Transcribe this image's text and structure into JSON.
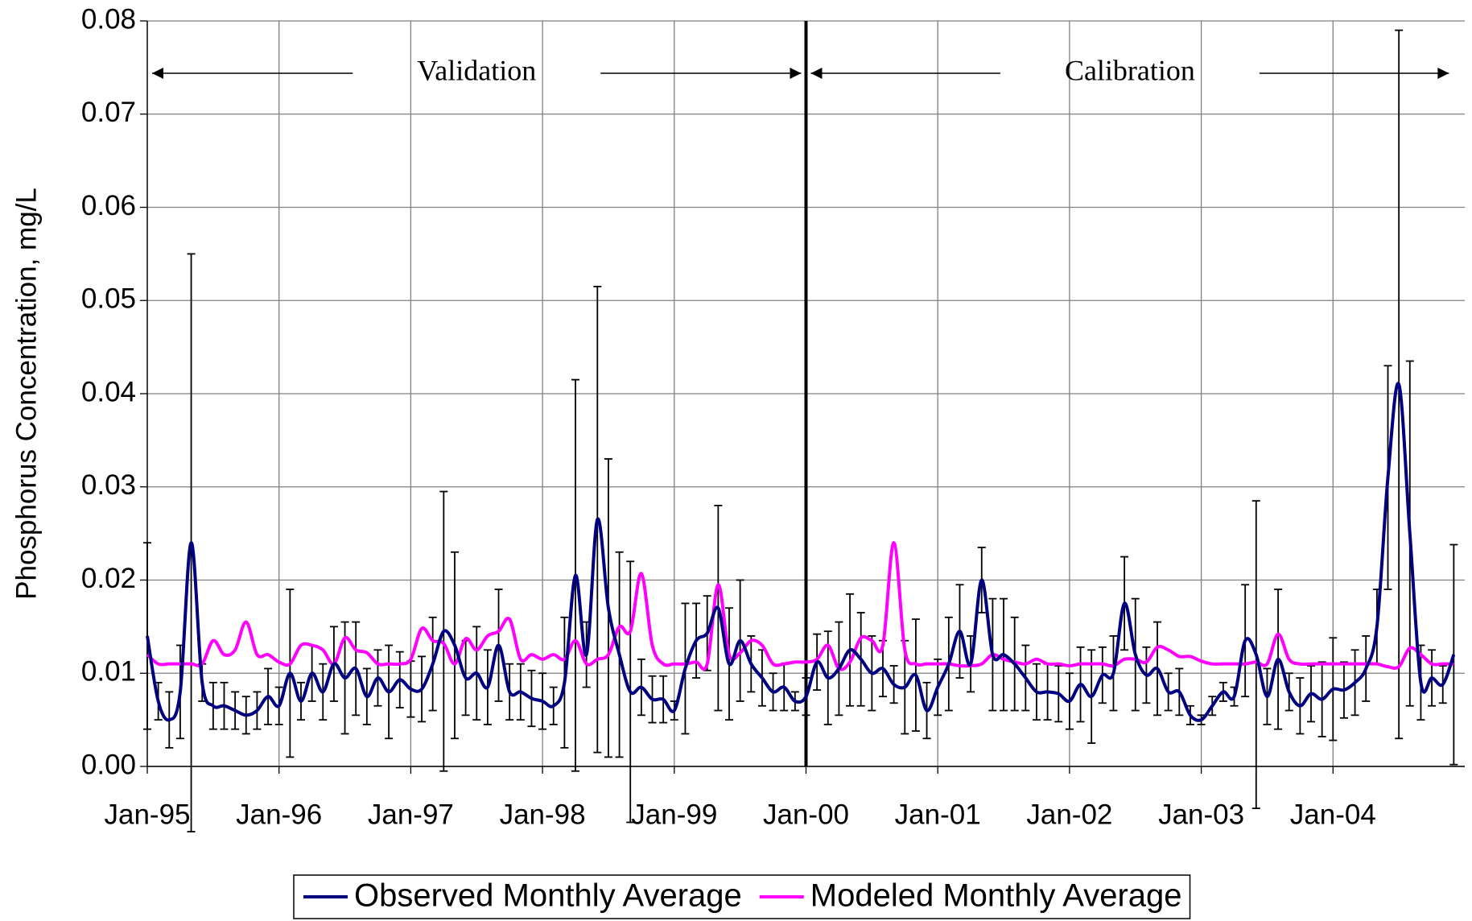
{
  "chart_data": {
    "type": "line",
    "y_label": "Phosphorus Concentration, mg/L",
    "categories": [
      "Jan-95",
      null,
      null,
      null,
      null,
      null,
      null,
      null,
      null,
      null,
      null,
      null,
      "Jan-96",
      null,
      null,
      null,
      null,
      null,
      null,
      null,
      null,
      null,
      null,
      null,
      "Jan-97",
      null,
      null,
      null,
      null,
      null,
      null,
      null,
      null,
      null,
      null,
      null,
      "Jan-98",
      null,
      null,
      null,
      null,
      null,
      null,
      null,
      null,
      null,
      null,
      null,
      "Jan-99",
      null,
      null,
      null,
      null,
      null,
      null,
      null,
      null,
      null,
      null,
      null,
      "Jan-00",
      null,
      null,
      null,
      null,
      null,
      null,
      null,
      null,
      null,
      null,
      null,
      "Jan-01",
      null,
      null,
      null,
      null,
      null,
      null,
      null,
      null,
      null,
      null,
      null,
      "Jan-02",
      null,
      null,
      null,
      null,
      null,
      null,
      null,
      null,
      null,
      null,
      null,
      "Jan-03",
      null,
      null,
      null,
      null,
      null,
      null,
      null,
      null,
      null,
      null,
      null,
      "Jan-04",
      null,
      null,
      null,
      null,
      null,
      null,
      null,
      null,
      null,
      null,
      null
    ],
    "series": [
      {
        "name": "Observed Monthly Average",
        "color": "#000080",
        "values": [
          0.014,
          0.007,
          0.005,
          0.008,
          0.024,
          0.009,
          0.0065,
          0.0065,
          0.006,
          0.0055,
          0.006,
          0.0075,
          0.0065,
          0.01,
          0.007,
          0.01,
          0.008,
          0.011,
          0.0095,
          0.0105,
          0.0075,
          0.0095,
          0.008,
          0.0093,
          0.0083,
          0.0083,
          0.011,
          0.0145,
          0.013,
          0.0095,
          0.01,
          0.0085,
          0.013,
          0.008,
          0.008,
          0.0073,
          0.007,
          0.0065,
          0.009,
          0.0205,
          0.012,
          0.0265,
          0.017,
          0.012,
          0.008,
          0.0085,
          0.0072,
          0.0072,
          0.006,
          0.0105,
          0.0135,
          0.0143,
          0.017,
          0.011,
          0.0135,
          0.011,
          0.0095,
          0.008,
          0.0085,
          0.007,
          0.0075,
          0.0112,
          0.0095,
          0.0105,
          0.0125,
          0.0115,
          0.01,
          0.0105,
          0.0088,
          0.0085,
          0.0098,
          0.006,
          0.0085,
          0.011,
          0.0145,
          0.011,
          0.02,
          0.012,
          0.012,
          0.011,
          0.0095,
          0.008,
          0.008,
          0.0078,
          0.007,
          0.0088,
          0.0075,
          0.0098,
          0.01,
          0.0175,
          0.012,
          0.0098,
          0.0105,
          0.008,
          0.008,
          0.0055,
          0.005,
          0.0065,
          0.008,
          0.0075,
          0.0135,
          0.012,
          0.0075,
          0.0115,
          0.008,
          0.0065,
          0.0078,
          0.0072,
          0.0083,
          0.0082,
          0.009,
          0.0105,
          0.015,
          0.031,
          0.041,
          0.025,
          0.009,
          0.0095,
          0.0088,
          0.012
        ],
        "errors": [
          0.01,
          0.002,
          0.003,
          0.005,
          0.031,
          0.002,
          0.0025,
          0.0025,
          0.002,
          0.002,
          0.002,
          0.003,
          0.002,
          0.009,
          0.002,
          0.003,
          0.003,
          0.004,
          0.006,
          0.005,
          0.003,
          0.003,
          0.005,
          0.003,
          0.003,
          0.0035,
          0.005,
          0.015,
          0.01,
          0.004,
          0.005,
          0.004,
          0.006,
          0.003,
          0.003,
          0.003,
          0.003,
          0.002,
          0.007,
          0.021,
          0.0035,
          0.025,
          0.016,
          0.011,
          0.014,
          0.003,
          0.0025,
          0.0025,
          0.001,
          0.007,
          0.004,
          0.004,
          0.011,
          0.006,
          0.0065,
          0.003,
          0.003,
          0.002,
          0.0025,
          0.001,
          0.002,
          0.003,
          0.005,
          0.005,
          0.006,
          0.005,
          0.004,
          0.003,
          0.002,
          0.005,
          0.006,
          0.003,
          0.003,
          0.005,
          0.005,
          0.003,
          0.0035,
          0.006,
          0.006,
          0.005,
          0.0035,
          0.003,
          0.003,
          0.003,
          0.003,
          0.004,
          0.005,
          0.003,
          0.004,
          0.005,
          0.006,
          0.003,
          0.005,
          0.002,
          0.0025,
          0.001,
          0.0005,
          0.001,
          0.001,
          0.001,
          0.006,
          0.0165,
          0.003,
          0.0075,
          0.002,
          0.003,
          0.003,
          0.004,
          0.0055,
          0.003,
          0.0035,
          0.0035,
          0.004,
          0.012,
          0.038,
          0.0185,
          0.004,
          0.003,
          0.002,
          0.0118
        ]
      },
      {
        "name": "Modeled Monthly Average",
        "color": "#ff00ff",
        "values": [
          0.012,
          0.011,
          0.011,
          0.011,
          0.011,
          0.011,
          0.0135,
          0.012,
          0.0125,
          0.0155,
          0.012,
          0.012,
          0.0112,
          0.011,
          0.013,
          0.013,
          0.0125,
          0.011,
          0.0138,
          0.0125,
          0.0122,
          0.011,
          0.011,
          0.011,
          0.0115,
          0.0148,
          0.0135,
          0.0132,
          0.011,
          0.0137,
          0.0125,
          0.014,
          0.0145,
          0.0158,
          0.0115,
          0.012,
          0.0115,
          0.012,
          0.0115,
          0.0135,
          0.011,
          0.0115,
          0.012,
          0.015,
          0.0145,
          0.0207,
          0.013,
          0.011,
          0.011,
          0.011,
          0.0112,
          0.011,
          0.0195,
          0.012,
          0.0122,
          0.0135,
          0.013,
          0.011,
          0.011,
          0.0112,
          0.0112,
          0.0115,
          0.013,
          0.0105,
          0.0112,
          0.0138,
          0.0135,
          0.013,
          0.024,
          0.0125,
          0.011,
          0.011,
          0.011,
          0.011,
          0.0108,
          0.0108,
          0.011,
          0.012,
          0.0115,
          0.0112,
          0.011,
          0.0115,
          0.011,
          0.011,
          0.0108,
          0.011,
          0.011,
          0.011,
          0.0108,
          0.0115,
          0.0115,
          0.0112,
          0.0128,
          0.0125,
          0.0118,
          0.0118,
          0.0113,
          0.011,
          0.011,
          0.011,
          0.011,
          0.0112,
          0.011,
          0.0142,
          0.0115,
          0.011,
          0.011,
          0.011,
          0.011,
          0.011,
          0.011,
          0.011,
          0.011,
          0.0107,
          0.0107,
          0.0127,
          0.012,
          0.011,
          0.011,
          0.011
        ]
      }
    ],
    "ylim": [
      0,
      0.08
    ],
    "yticks": [
      {
        "value": 0,
        "label": "0.00"
      },
      0.01,
      0.02,
      0.03,
      0.04,
      0.05,
      0.06,
      0.07,
      0.08
    ],
    "grid": true,
    "legend": "bottom",
    "annotations": [
      {
        "text": "Validation",
        "start": "Jan-95"
      },
      {
        "text": "Calibration",
        "start": "Jan-00"
      }
    ]
  }
}
